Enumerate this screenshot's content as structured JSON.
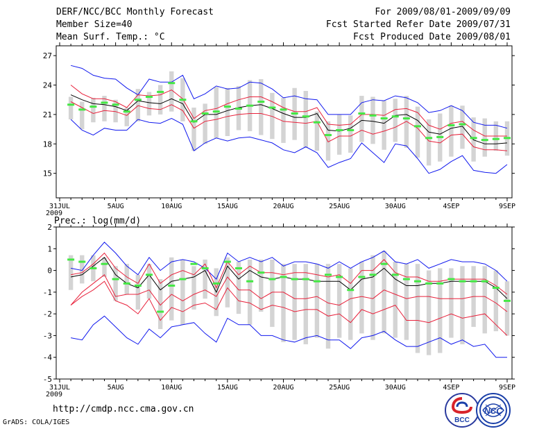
{
  "header": {
    "left": [
      "DERF/NCC/BCC Monthly Forecast",
      "Member Size=40",
      "Mean Surf. Temp.: °C"
    ],
    "right": [
      "For 2009/08/01-2009/09/09",
      "Fcst Started Refer Date 2009/07/31",
      "Fcst Produced Date 2009/08/01"
    ]
  },
  "footer": {
    "url": "http://cmdp.ncc.cma.gov.cn",
    "grads": "GrADS: COLA/IGES",
    "logo_left": "BCC",
    "logo_right": "NCC"
  },
  "colors": {
    "box": "#d4d4d4",
    "median": "#000000",
    "inner": "#e8203a",
    "outer": "#1018ee",
    "obs": "#44e844",
    "frame": "#000000"
  },
  "chart_data": [
    {
      "type": "line",
      "title": "Mean Surf. Temp.: °C",
      "x_tick_labels": [
        "31JUL",
        "5AUG",
        "10AUG",
        "15AUG",
        "20AUG",
        "25AUG",
        "30AUG",
        "4SEP",
        "9SEP"
      ],
      "x_year_label": "2009",
      "x_tick_days": [
        0,
        5,
        10,
        15,
        20,
        25,
        30,
        35,
        40
      ],
      "ylim": [
        12.5,
        28
      ],
      "yticks": [
        15,
        18,
        21,
        24,
        27
      ],
      "days": [
        1,
        2,
        3,
        4,
        5,
        6,
        7,
        8,
        9,
        10,
        11,
        12,
        13,
        14,
        15,
        16,
        17,
        18,
        19,
        20,
        21,
        22,
        23,
        24,
        25,
        26,
        27,
        28,
        29,
        30,
        31,
        32,
        33,
        34,
        35,
        36,
        37,
        38,
        39,
        40
      ],
      "box_low": [
        20.5,
        19.5,
        20.2,
        20.3,
        20.2,
        19.8,
        20.3,
        20.9,
        21.0,
        21.3,
        20.3,
        17.3,
        18.0,
        18.6,
        18.8,
        19.4,
        19.3,
        18.9,
        18.5,
        18.1,
        18.4,
        17.6,
        17.3,
        16.3,
        16.9,
        17.1,
        18.2,
        18.0,
        17.4,
        18.2,
        17.6,
        16.6,
        15.8,
        16.2,
        16.7,
        17.5,
        16.2,
        16.7,
        17.3,
        16.8
      ],
      "box_high": [
        22.8,
        22.3,
        22.7,
        22.9,
        22.5,
        21.7,
        23.6,
        23.3,
        24.0,
        25.4,
        24.7,
        21.7,
        22.1,
        23.8,
        23.7,
        23.9,
        24.5,
        24.6,
        23.2,
        22.7,
        23.7,
        23.4,
        21.3,
        20.3,
        21.0,
        20.9,
        22.9,
        22.8,
        22.4,
        22.6,
        22.9,
        21.8,
        20.5,
        21.1,
        21.9,
        21.9,
        20.7,
        20.6,
        20.3,
        20.3
      ],
      "series": [
        {
          "name": "max",
          "role": "outer",
          "values": [
            26.0,
            25.7,
            25.0,
            24.7,
            24.6,
            23.7,
            23.0,
            24.6,
            24.3,
            24.3,
            25.0,
            22.6,
            23.1,
            23.9,
            23.6,
            23.7,
            24.3,
            24.2,
            23.6,
            22.7,
            22.9,
            22.6,
            22.5,
            21.0,
            21.0,
            21.0,
            22.2,
            22.5,
            22.4,
            22.9,
            22.7,
            22.2,
            21.2,
            21.4,
            21.9,
            21.4,
            20.2,
            19.9,
            19.9,
            19.6
          ]
        },
        {
          "name": "upper",
          "role": "inner",
          "values": [
            24.0,
            23.1,
            22.6,
            22.6,
            22.3,
            21.7,
            23.0,
            22.9,
            23.0,
            23.5,
            22.6,
            20.6,
            21.4,
            21.6,
            22.1,
            22.5,
            22.8,
            22.8,
            22.3,
            21.7,
            21.3,
            21.3,
            21.7,
            20.0,
            19.9,
            20.0,
            21.0,
            21.0,
            20.9,
            21.5,
            21.6,
            21.2,
            19.9,
            19.5,
            20.1,
            20.3,
            19.4,
            18.8,
            18.8,
            18.8
          ]
        },
        {
          "name": "median",
          "role": "median",
          "values": [
            23.0,
            22.5,
            22.1,
            22.0,
            21.8,
            21.4,
            22.4,
            22.2,
            22.1,
            22.6,
            22.1,
            20.2,
            21.0,
            21.0,
            21.4,
            21.7,
            21.9,
            22.0,
            21.6,
            21.1,
            20.7,
            20.7,
            21.1,
            19.4,
            19.3,
            19.6,
            20.4,
            20.3,
            20.1,
            20.9,
            21.0,
            20.4,
            19.2,
            19.0,
            19.6,
            19.8,
            18.4,
            18.0,
            18.0,
            18.1
          ]
        },
        {
          "name": "lower",
          "role": "inner",
          "values": [
            22.3,
            21.7,
            21.1,
            21.4,
            21.3,
            20.9,
            21.9,
            21.6,
            21.5,
            22.0,
            21.4,
            19.6,
            20.3,
            20.5,
            20.8,
            21.0,
            21.1,
            21.1,
            20.8,
            20.3,
            20.2,
            20.1,
            20.3,
            18.2,
            18.8,
            18.8,
            19.4,
            19.0,
            19.3,
            19.7,
            20.3,
            19.6,
            18.3,
            18.1,
            18.9,
            19.0,
            17.7,
            17.4,
            17.4,
            17.3
          ]
        },
        {
          "name": "min",
          "role": "outer",
          "values": [
            20.5,
            19.4,
            18.9,
            19.6,
            19.4,
            19.4,
            20.5,
            20.2,
            20.1,
            20.6,
            20.0,
            17.3,
            18.1,
            18.6,
            18.3,
            18.6,
            18.7,
            18.4,
            18.1,
            17.4,
            17.1,
            17.7,
            17.1,
            15.6,
            16.1,
            16.5,
            18.1,
            17.1,
            16.1,
            18.0,
            17.8,
            16.5,
            15.0,
            15.4,
            16.2,
            16.8,
            15.3,
            15.1,
            15.0,
            15.9
          ]
        }
      ],
      "obs": [
        22.0,
        21.5,
        21.8,
        22.2,
        22.0,
        21.3,
        22.5,
        22.8,
        23.3,
        24.2,
        22.5,
        20.3,
        21.1,
        21.3,
        21.8,
        21.6,
        21.9,
        22.3,
        21.7,
        21.5,
        21.1,
        20.8,
        20.2,
        18.9,
        19.4,
        19.4,
        21.1,
        20.9,
        20.6,
        20.8,
        20.6,
        19.8,
        18.6,
        18.7,
        19.9,
        20.0,
        18.6,
        18.4,
        18.5,
        18.6
      ]
    },
    {
      "type": "line",
      "title": "Prec.: log(mm/d)",
      "x_tick_labels": [
        "31JUL",
        "5AUG",
        "10AUG",
        "15AUG",
        "20AUG",
        "25AUG",
        "30AUG",
        "4SEP",
        "9SEP"
      ],
      "x_year_label": "2009",
      "x_tick_days": [
        0,
        5,
        10,
        15,
        20,
        25,
        30,
        35,
        40
      ],
      "ylim": [
        -5,
        2
      ],
      "yticks": [
        -5,
        -4,
        -3,
        -2,
        -1,
        0,
        1,
        2
      ],
      "days": [
        1,
        2,
        3,
        4,
        5,
        6,
        7,
        8,
        9,
        10,
        11,
        12,
        13,
        14,
        15,
        16,
        17,
        18,
        19,
        20,
        21,
        22,
        23,
        24,
        25,
        26,
        27,
        28,
        29,
        30,
        31,
        32,
        33,
        34,
        35,
        36,
        37,
        38,
        39,
        40
      ],
      "box_low": [
        -0.9,
        -0.6,
        -0.5,
        -0.3,
        -1.4,
        -1.1,
        -1.8,
        -1.3,
        -2.7,
        -2.3,
        -2.5,
        -1.8,
        -1.3,
        -2.1,
        -1.7,
        -2.0,
        -2.5,
        -1.9,
        -2.6,
        -3.3,
        -3.2,
        -3.4,
        -3.1,
        -3.6,
        -3.1,
        -3.2,
        -2.9,
        -3.2,
        -2.9,
        -3.1,
        -3.2,
        -3.8,
        -3.9,
        -3.8,
        -3.1,
        -3.4,
        -2.6,
        -2.9,
        -2.8,
        -3.0
      ],
      "box_high": [
        0.7,
        0.7,
        0.7,
        0.6,
        0.2,
        0.3,
        -0.2,
        0.3,
        -0.4,
        0.6,
        0.5,
        0.2,
        0.5,
        0.1,
        0.6,
        0.4,
        0.5,
        0.5,
        0.5,
        0.3,
        0.3,
        0.3,
        0.3,
        0.3,
        0.3,
        0.1,
        0.4,
        0.7,
        0.9,
        0.4,
        0.3,
        0.3,
        0.0,
        0.1,
        0.1,
        0.2,
        0.2,
        0.2,
        0.0,
        -0.5
      ],
      "series": [
        {
          "name": "max",
          "role": "outer",
          "values": [
            0.1,
            0.0,
            0.7,
            1.3,
            0.8,
            0.2,
            -0.2,
            0.6,
            0.0,
            0.4,
            0.5,
            0.4,
            0.1,
            -0.4,
            0.8,
            0.4,
            0.6,
            0.4,
            0.6,
            0.2,
            0.4,
            0.4,
            0.3,
            0.1,
            0.4,
            0.1,
            0.4,
            0.6,
            0.9,
            0.4,
            0.3,
            0.5,
            0.1,
            0.3,
            0.5,
            0.4,
            0.4,
            0.3,
            0.0,
            -0.5
          ]
        },
        {
          "name": "upper",
          "role": "inner",
          "values": [
            -0.2,
            -0.1,
            0.3,
            0.8,
            0.1,
            -0.3,
            -0.6,
            0.3,
            -0.6,
            -0.2,
            0.0,
            -0.2,
            0.3,
            -0.8,
            0.4,
            -0.2,
            0.2,
            -0.1,
            -0.1,
            -0.2,
            -0.1,
            -0.1,
            -0.2,
            -0.3,
            -0.2,
            -0.6,
            0.0,
            0.0,
            0.5,
            -0.1,
            -0.3,
            -0.3,
            -0.5,
            -0.5,
            -0.4,
            -0.4,
            -0.4,
            -0.4,
            -0.7,
            -1.1
          ]
        },
        {
          "name": "median",
          "role": "median",
          "values": [
            -0.3,
            -0.2,
            0.2,
            0.6,
            -0.2,
            -0.6,
            -0.8,
            -0.2,
            -0.9,
            -0.5,
            -0.4,
            -0.3,
            0.0,
            -1.0,
            0.2,
            -0.4,
            0.0,
            -0.3,
            -0.4,
            -0.3,
            -0.4,
            -0.4,
            -0.5,
            -0.5,
            -0.5,
            -0.9,
            -0.4,
            -0.3,
            0.1,
            -0.4,
            -0.7,
            -0.7,
            -0.6,
            -0.6,
            -0.5,
            -0.5,
            -0.5,
            -0.5,
            -0.8,
            -1.3
          ]
        },
        {
          "name": "lower",
          "role": "inner",
          "values": [
            -1.6,
            -1.0,
            -0.6,
            -0.2,
            -1.2,
            -1.1,
            -1.1,
            -0.9,
            -1.6,
            -1.1,
            -1.4,
            -1.1,
            -0.9,
            -1.2,
            -0.3,
            -0.9,
            -0.9,
            -1.3,
            -1.0,
            -1.0,
            -1.3,
            -1.3,
            -1.2,
            -1.5,
            -1.6,
            -1.3,
            -1.2,
            -1.3,
            -0.9,
            -1.1,
            -1.3,
            -1.2,
            -1.2,
            -1.3,
            -1.3,
            -1.3,
            -1.2,
            -1.2,
            -1.5,
            -1.9
          ]
        },
        {
          "name": "lower2",
          "role": "inner",
          "values": [
            -1.6,
            -1.2,
            -0.9,
            -0.5,
            -1.4,
            -1.6,
            -2.0,
            -1.3,
            -2.3,
            -1.7,
            -1.9,
            -1.6,
            -1.5,
            -1.8,
            -0.8,
            -1.4,
            -1.5,
            -1.8,
            -1.6,
            -1.7,
            -1.9,
            -1.8,
            -1.8,
            -2.1,
            -2.0,
            -2.4,
            -1.8,
            -2.0,
            -1.8,
            -1.6,
            -2.3,
            -2.3,
            -2.4,
            -2.2,
            -2.0,
            -2.2,
            -2.1,
            -2.0,
            -2.5,
            -3.0
          ]
        },
        {
          "name": "min",
          "role": "outer",
          "values": [
            -3.1,
            -3.2,
            -2.5,
            -2.1,
            -2.6,
            -3.1,
            -3.4,
            -2.7,
            -3.1,
            -2.6,
            -2.5,
            -2.4,
            -2.9,
            -3.3,
            -2.2,
            -2.5,
            -2.5,
            -3.0,
            -3.0,
            -3.2,
            -3.3,
            -3.1,
            -3.0,
            -3.2,
            -3.2,
            -3.6,
            -3.1,
            -3.0,
            -2.8,
            -3.2,
            -3.5,
            -3.5,
            -3.3,
            -3.1,
            -3.4,
            -3.2,
            -3.5,
            -3.4,
            -4.0,
            -4.0
          ]
        }
      ],
      "obs": [
        0.5,
        0.4,
        0.1,
        0.3,
        -0.4,
        -0.6,
        -0.7,
        -0.2,
        -1.9,
        -0.7,
        -0.4,
        0.3,
        0.1,
        -0.6,
        0.4,
        0.1,
        -0.5,
        -0.1,
        -0.4,
        -0.3,
        -0.4,
        -0.4,
        -0.5,
        -0.2,
        -0.3,
        -0.9,
        -0.3,
        -0.2,
        0.3,
        -0.2,
        -0.4,
        -0.5,
        -0.6,
        -0.6,
        -0.4,
        -0.5,
        -0.5,
        -0.5,
        -0.8,
        -1.4
      ]
    }
  ]
}
